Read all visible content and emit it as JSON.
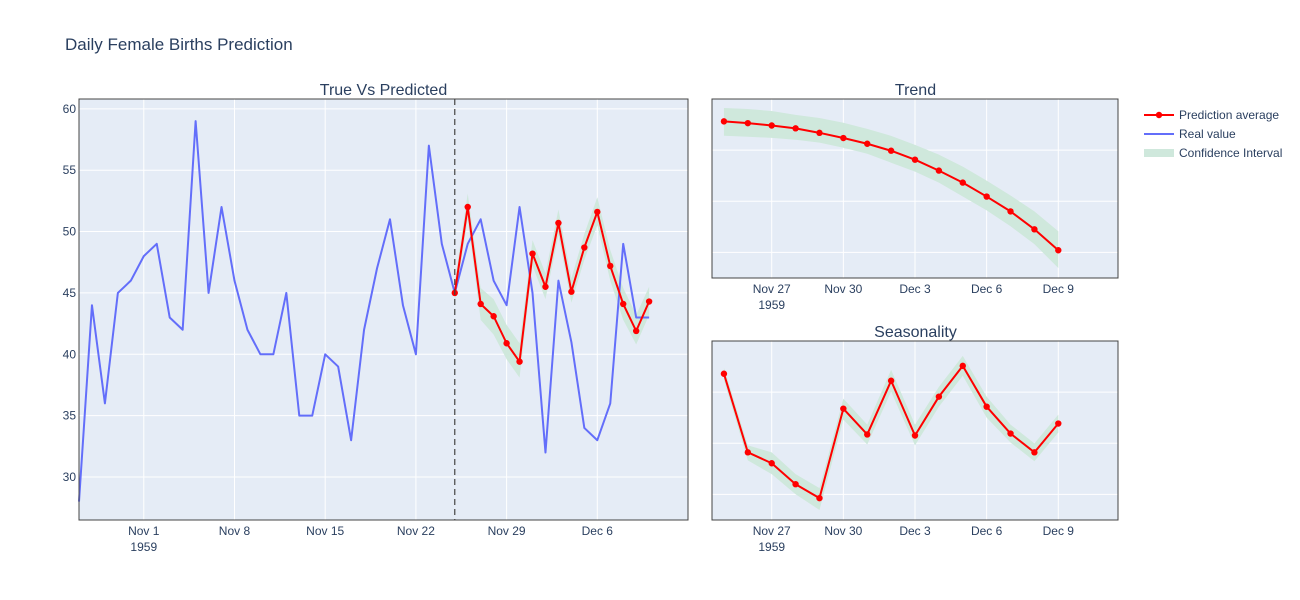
{
  "figure": {
    "title": "Daily Female Births Prediction"
  },
  "colors": {
    "plot_bg": "#e5ecf6",
    "grid": "#ffffff",
    "real": "#636efa",
    "prediction": "#ff0000",
    "confidence": "#cfe8dc",
    "axis_line": "#444444",
    "text": "#2a3f5f"
  },
  "legend": {
    "position": "top-right",
    "items": [
      {
        "label": "Prediction average",
        "kind": "line-marker"
      },
      {
        "label": "Real value",
        "kind": "line"
      },
      {
        "label": "Confidence Interval",
        "kind": "band"
      }
    ]
  },
  "chart_data": [
    {
      "type": "line",
      "title": "True Vs Predicted",
      "xlabel": "",
      "ylabel": "",
      "ylim": [
        26.5,
        60.8
      ],
      "xlim": [
        "1959-10-27",
        "1959-12-13"
      ],
      "grid": true,
      "y_ticks": [
        30,
        35,
        40,
        45,
        50,
        55,
        60
      ],
      "x_ticks": [
        {
          "date": "1959-11-01",
          "label": "Nov 1",
          "sublabel": "1959"
        },
        {
          "date": "1959-11-08",
          "label": "Nov 8"
        },
        {
          "date": "1959-11-15",
          "label": "Nov 15"
        },
        {
          "date": "1959-11-22",
          "label": "Nov 22"
        },
        {
          "date": "1959-11-29",
          "label": "Nov 29"
        },
        {
          "date": "1959-12-06",
          "label": "Dec 6"
        }
      ],
      "cutoff_date": "1959-11-25",
      "series": [
        {
          "name": "Real value",
          "start_date": "1959-10-27",
          "values": [
            28,
            44,
            36,
            45,
            46,
            48,
            49,
            43,
            42,
            59,
            45,
            52,
            46,
            42,
            40,
            40,
            45,
            35,
            35,
            40,
            39,
            33,
            42,
            47,
            51,
            44,
            40,
            57,
            49,
            45,
            49,
            51,
            46,
            44,
            52,
            45,
            32,
            46,
            41,
            34,
            33,
            36,
            49,
            43,
            43
          ]
        },
        {
          "name": "Prediction average",
          "start_date": "1959-11-25",
          "values": [
            45.0,
            52.0,
            44.1,
            43.1,
            40.9,
            39.4,
            48.2,
            45.5,
            50.7,
            45.1,
            48.7,
            51.6,
            47.2,
            44.1,
            41.9,
            44.3
          ]
        }
      ],
      "confidence": {
        "start_date": "1959-11-25",
        "lower": [
          44.2,
          51.0,
          42.8,
          41.6,
          39.6,
          38.1,
          47.2,
          44.5,
          49.7,
          44.2,
          47.7,
          50.5,
          46.0,
          42.8,
          40.8,
          43.2
        ],
        "upper": [
          45.9,
          53.1,
          45.4,
          44.5,
          42.4,
          40.9,
          49.3,
          46.6,
          51.8,
          46.2,
          49.8,
          52.8,
          48.5,
          45.4,
          43.2,
          45.5
        ]
      }
    },
    {
      "type": "line",
      "title": "Trend",
      "xlabel": "",
      "ylabel": "",
      "ylim": [
        0,
        100
      ],
      "xlim": [
        "1959-11-24.5",
        "1959-12-11.5"
      ],
      "grid": true,
      "y_tick_labels": "hidden",
      "x_ticks": [
        {
          "date": "1959-11-27",
          "label": "Nov 27",
          "sublabel": "1959"
        },
        {
          "date": "1959-11-30",
          "label": "Nov 30"
        },
        {
          "date": "1959-12-03",
          "label": "Dec 3"
        },
        {
          "date": "1959-12-06",
          "label": "Dec 6"
        },
        {
          "date": "1959-12-09",
          "label": "Dec 9"
        }
      ],
      "start_date": "1959-11-25",
      "series": [
        {
          "name": "Prediction average",
          "values": [
            87.5,
            86.5,
            85.2,
            83.6,
            81.1,
            78.2,
            75.0,
            71.1,
            66.1,
            60.0,
            53.3,
            45.5,
            37.2,
            27.2,
            15.5
          ]
        }
      ],
      "confidence": {
        "lower": [
          79.5,
          78.9,
          78.3,
          77.2,
          75.6,
          72.8,
          69.4,
          64.4,
          59.4,
          53.3,
          45.5,
          37.8,
          28.9,
          18.9,
          5.6
        ],
        "upper": [
          95.0,
          94.4,
          93.3,
          91.1,
          89.4,
          86.7,
          83.3,
          79.4,
          74.4,
          68.9,
          62.2,
          54.4,
          46.1,
          37.2,
          26.1
        ]
      }
    },
    {
      "type": "line",
      "title": "Seasonality",
      "xlabel": "",
      "ylabel": "",
      "ylim": [
        0,
        100
      ],
      "xlim": [
        "1959-11-24.5",
        "1959-12-11.5"
      ],
      "grid": true,
      "y_tick_labels": "hidden",
      "x_ticks": [
        {
          "date": "1959-11-27",
          "label": "Nov 27",
          "sublabel": "1959"
        },
        {
          "date": "1959-11-30",
          "label": "Nov 30"
        },
        {
          "date": "1959-12-03",
          "label": "Dec 3"
        },
        {
          "date": "1959-12-06",
          "label": "Dec 6"
        },
        {
          "date": "1959-12-09",
          "label": "Dec 9"
        }
      ],
      "start_date": "1959-11-25",
      "series": [
        {
          "name": "Prediction average",
          "values": [
            81.7,
            37.8,
            31.7,
            20.0,
            12.2,
            62.2,
            47.8,
            77.8,
            47.2,
            68.9,
            86.1,
            63.3,
            48.3,
            37.8,
            53.9
          ]
        }
      ],
      "confidence": {
        "lower": [
          78.3,
          33.3,
          25.6,
          14.4,
          5.6,
          56.1,
          42.2,
          71.7,
          41.7,
          63.3,
          80.6,
          57.2,
          43.3,
          32.8,
          48.9
        ],
        "upper": [
          85.0,
          41.7,
          37.8,
          25.6,
          17.8,
          67.8,
          53.3,
          83.9,
          53.3,
          74.4,
          91.7,
          68.9,
          53.3,
          42.8,
          58.9
        ]
      }
    }
  ]
}
